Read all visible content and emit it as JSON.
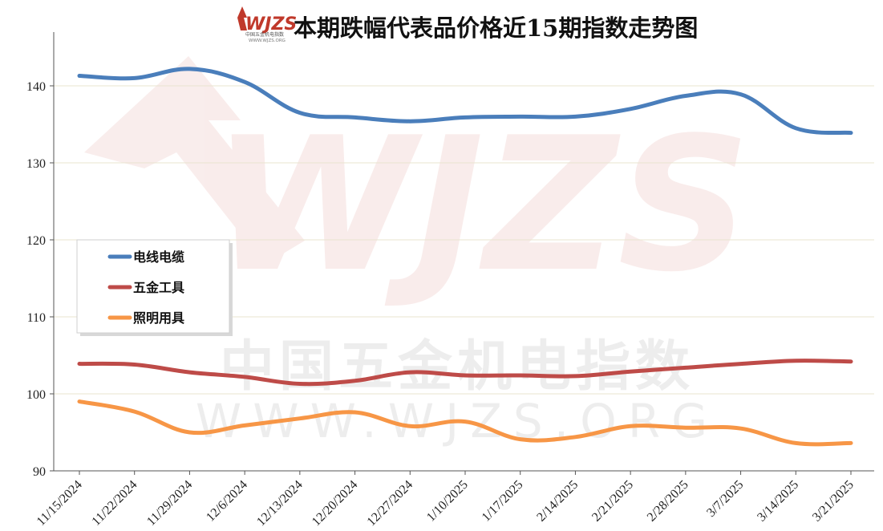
{
  "header": {
    "logo_text": "WJZS",
    "logo_subtext": "中国五金机电指数",
    "logo_url_text": "WWW.WJZS.ORG",
    "title": "本期跌幅代表品价格近15期指数走势图"
  },
  "watermark": {
    "logo_text": "WJZS",
    "cn_text": "中国五金机电指数",
    "url_text": "WWW.WJZS.ORG"
  },
  "chart_data": {
    "type": "line",
    "title": "本期跌幅代表品价格近15期指数走势图",
    "xlabel": "",
    "ylabel": "",
    "ylim": [
      90,
      145
    ],
    "yticks": [
      90,
      100,
      110,
      120,
      130,
      140
    ],
    "grid": true,
    "legend_position": "left-middle",
    "categories": [
      "11/15/2024",
      "11/22/2024",
      "11/29/2024",
      "12/6/2024",
      "12/13/2024",
      "12/20/2024",
      "12/27/2024",
      "1/10/2025",
      "1/17/2025",
      "2/14/2025",
      "2/21/2025",
      "2/28/2025",
      "3/7/2025",
      "3/14/2025",
      "3/21/2025"
    ],
    "series": [
      {
        "name": "电线电缆",
        "color": "#4a7ebb",
        "values": [
          141.3,
          141.0,
          142.2,
          140.5,
          136.5,
          135.9,
          135.4,
          135.9,
          136.0,
          136.0,
          137.0,
          138.7,
          138.9,
          134.5,
          133.9
        ]
      },
      {
        "name": "五金工具",
        "color": "#be4b48",
        "values": [
          103.9,
          103.8,
          102.8,
          102.2,
          101.3,
          101.7,
          102.8,
          102.4,
          102.4,
          102.3,
          102.9,
          103.4,
          103.9,
          104.3,
          104.2
        ]
      },
      {
        "name": "照明用具",
        "color": "#f79646",
        "values": [
          99.0,
          97.7,
          95.0,
          95.9,
          96.8,
          97.6,
          95.8,
          96.4,
          94.1,
          94.4,
          95.8,
          95.6,
          95.5,
          93.6,
          93.6
        ]
      }
    ]
  }
}
